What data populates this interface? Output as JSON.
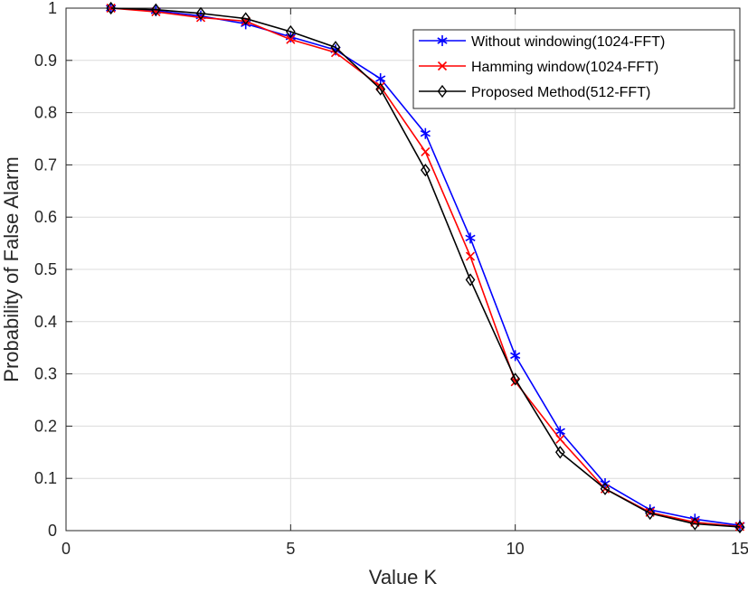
{
  "chart_data": {
    "type": "line",
    "xlabel": "Value K",
    "ylabel": "Probability of False Alarm",
    "xlim": [
      0,
      15
    ],
    "ylim": [
      0,
      1
    ],
    "xticks": [
      "0",
      "5",
      "10",
      "15"
    ],
    "yticks": [
      "0",
      "0.1",
      "0.2",
      "0.3",
      "0.4",
      "0.5",
      "0.6",
      "0.7",
      "0.8",
      "0.9",
      "1"
    ],
    "grid": true,
    "legend_position": "top-right",
    "x": [
      1,
      2,
      3,
      4,
      5,
      6,
      7,
      8,
      9,
      10,
      11,
      12,
      13,
      14,
      15
    ],
    "series": [
      {
        "name": "Without windowing(1024-FFT)",
        "color": "#0000ff",
        "marker": "asterisk",
        "values": [
          1.0,
          0.995,
          0.985,
          0.97,
          0.945,
          0.92,
          0.865,
          0.76,
          0.56,
          0.335,
          0.19,
          0.09,
          0.04,
          0.022,
          0.01
        ]
      },
      {
        "name": "Hamming window(1024-FFT)",
        "color": "#ff0000",
        "marker": "x",
        "values": [
          1.0,
          0.993,
          0.982,
          0.975,
          0.94,
          0.915,
          0.85,
          0.725,
          0.525,
          0.285,
          0.175,
          0.08,
          0.035,
          0.016,
          0.008
        ]
      },
      {
        "name": "Proposed Method(512-FFT)",
        "color": "#000000",
        "marker": "diamond",
        "values": [
          1.0,
          0.997,
          0.99,
          0.98,
          0.955,
          0.925,
          0.845,
          0.69,
          0.48,
          0.29,
          0.15,
          0.08,
          0.033,
          0.013,
          0.007
        ]
      }
    ]
  }
}
